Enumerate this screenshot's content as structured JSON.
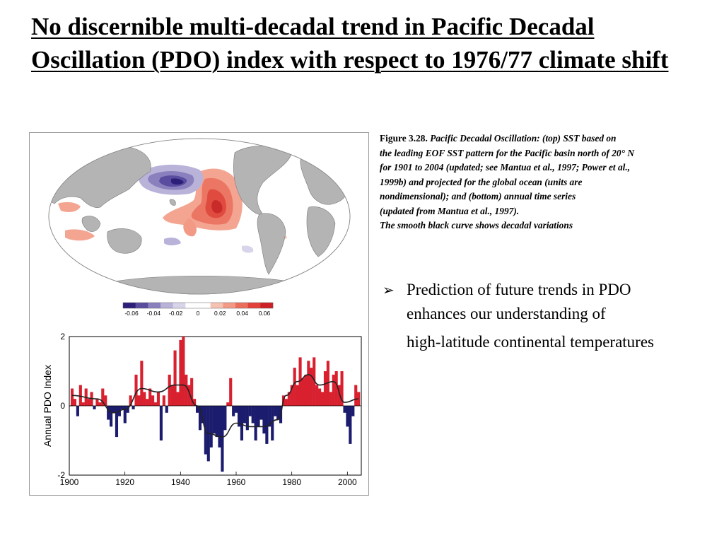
{
  "slide": {
    "title": "No discernible multi-decadal trend in Pacific Decadal Oscillation (PDO) index with respect to 1976/77 climate shift"
  },
  "caption": {
    "figure_label": "Figure 3.28.",
    "lines": [
      "Pacific Decadal Oscillation: (top) SST based on",
      "the leading EOF SST pattern for the Pacific basin north of 20° N",
      " for 1901 to 2004 (updated; see Mantua et al., 1997; Power et al.,",
      "1999b) and projected for the global ocean (units are",
      "nondimensional); and (bottom) annual time series",
      " (updated from Mantua et al., 1997).",
      "The smooth black curve shows decadal variations"
    ]
  },
  "bullet": {
    "icon": "arrow-bullet-icon",
    "lines": [
      "Prediction of future trends in PDO",
      "enhances our understanding of",
      "high-latitude continental temperatures"
    ]
  },
  "colorbar": {
    "labels": [
      "-0.06",
      "-0.04",
      "-0.02",
      "0",
      "0.02",
      "0.04",
      "0.06"
    ],
    "colors": [
      "#2b1f7a",
      "#5a4c9e",
      "#8a80bd",
      "#b9b3d9",
      "#d8d5ea",
      "#ffffff",
      "#ffffff",
      "#f6c2b2",
      "#f29a85",
      "#eb6e5c",
      "#e2423a",
      "#cc1f26"
    ]
  },
  "colors": {
    "positive": "#d8202f",
    "negative": "#1c1c6e",
    "land": "#b4b4b4",
    "smooth_curve": "#222222"
  },
  "chart_data": {
    "type": "bar",
    "ylabel": "Annual PDO Index",
    "xlabel": "",
    "xlim": [
      1900,
      2005
    ],
    "ylim": [
      -2,
      2
    ],
    "x_ticks": [
      "1900",
      "1920",
      "1940",
      "1960",
      "1980",
      "2000"
    ],
    "y_ticks": [
      "2",
      "0",
      "-2"
    ],
    "years": [
      1901,
      1902,
      1903,
      1904,
      1905,
      1906,
      1907,
      1908,
      1909,
      1910,
      1911,
      1912,
      1913,
      1914,
      1915,
      1916,
      1917,
      1918,
      1919,
      1920,
      1921,
      1922,
      1923,
      1924,
      1925,
      1926,
      1927,
      1928,
      1929,
      1930,
      1931,
      1932,
      1933,
      1934,
      1935,
      1936,
      1937,
      1938,
      1939,
      1940,
      1941,
      1942,
      1943,
      1944,
      1945,
      1946,
      1947,
      1948,
      1949,
      1950,
      1951,
      1952,
      1953,
      1954,
      1955,
      1956,
      1957,
      1958,
      1959,
      1960,
      1961,
      1962,
      1963,
      1964,
      1965,
      1966,
      1967,
      1968,
      1969,
      1970,
      1971,
      1972,
      1973,
      1974,
      1975,
      1976,
      1977,
      1978,
      1979,
      1980,
      1981,
      1982,
      1983,
      1984,
      1985,
      1986,
      1987,
      1988,
      1989,
      1990,
      1991,
      1992,
      1993,
      1994,
      1995,
      1996,
      1997,
      1998,
      1999,
      2000,
      2001,
      2002,
      2003,
      2004
    ],
    "values": [
      0.5,
      0.2,
      -0.3,
      0.6,
      0.1,
      0.5,
      0.2,
      0.4,
      -0.1,
      0.2,
      0.1,
      0.5,
      0.3,
      -0.4,
      -0.6,
      -0.2,
      -0.9,
      -0.3,
      -0.1,
      -0.5,
      -0.2,
      0.3,
      -0.1,
      0.9,
      0.3,
      1.3,
      0.4,
      0.2,
      0.5,
      0.3,
      0.1,
      0.4,
      -1.0,
      0.3,
      -0.2,
      0.9,
      0.6,
      1.6,
      0.4,
      1.9,
      2.0,
      0.9,
      0.6,
      0.8,
      0.2,
      -0.2,
      -0.7,
      -0.5,
      -1.4,
      -1.6,
      -1.2,
      -0.8,
      -0.9,
      -1.2,
      -1.9,
      -0.7,
      0.1,
      0.8,
      -0.3,
      -0.2,
      -0.6,
      -1.0,
      -0.5,
      -0.7,
      -0.3,
      -0.5,
      -1.0,
      -0.6,
      -0.4,
      -0.8,
      -1.1,
      -0.6,
      -1.0,
      -0.3,
      -0.4,
      -0.5,
      0.3,
      0.2,
      0.4,
      0.6,
      1.1,
      0.6,
      1.4,
      0.8,
      0.9,
      1.3,
      1.1,
      1.4,
      0.6,
      0.5,
      0.4,
      1.0,
      1.3,
      0.4,
      0.9,
      1.0,
      0.6,
      1.0,
      -0.2,
      -0.6,
      -1.1,
      -0.3,
      0.6,
      0.4
    ],
    "smooth": [
      [
        1901,
        0.3
      ],
      [
        1910,
        0.2
      ],
      [
        1916,
        -0.2
      ],
      [
        1920,
        -0.1
      ],
      [
        1926,
        0.5
      ],
      [
        1932,
        0.4
      ],
      [
        1938,
        0.6
      ],
      [
        1941,
        0.6
      ],
      [
        1946,
        0.0
      ],
      [
        1950,
        -0.8
      ],
      [
        1955,
        -0.9
      ],
      [
        1960,
        -0.5
      ],
      [
        1965,
        -0.6
      ],
      [
        1970,
        -0.6
      ],
      [
        1975,
        -0.4
      ],
      [
        1978,
        0.3
      ],
      [
        1982,
        0.7
      ],
      [
        1986,
        0.9
      ],
      [
        1990,
        0.6
      ],
      [
        1995,
        0.7
      ],
      [
        1999,
        0.1
      ],
      [
        2004,
        0.2
      ]
    ]
  }
}
